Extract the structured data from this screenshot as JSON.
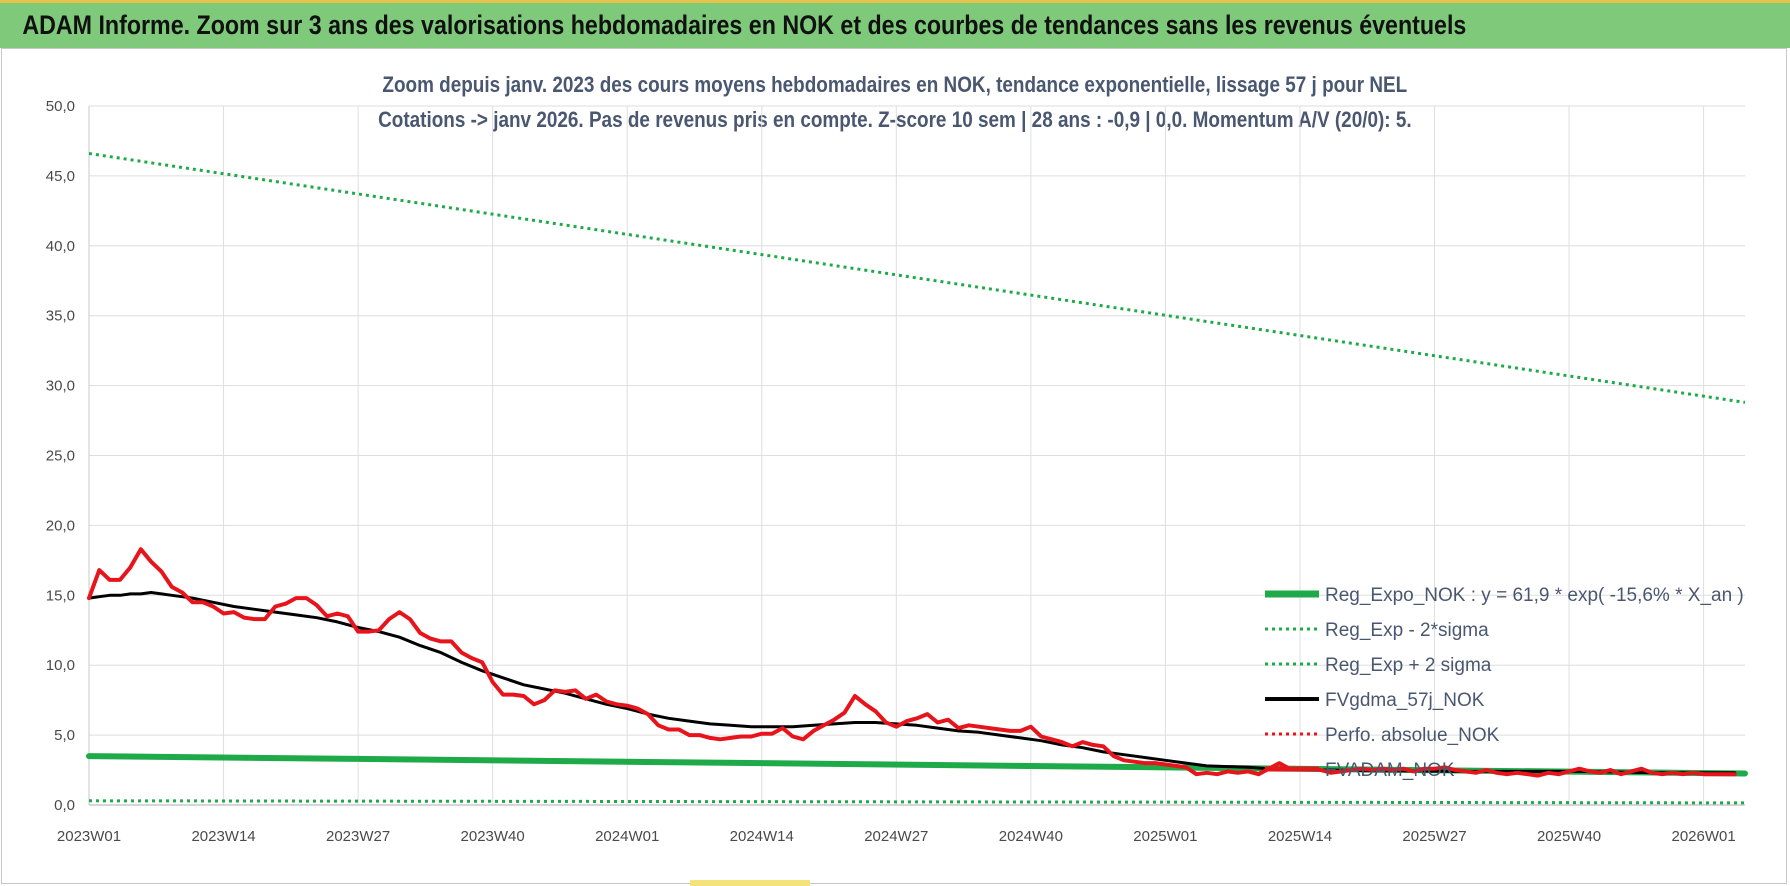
{
  "banner": {
    "title": "ADAM Informe. Zoom sur 3 ans des valorisations hebdomadaires en NOK et des courbes de tendances sans les revenus éventuels"
  },
  "chart_data": {
    "type": "line",
    "title": "Zoom depuis janv. 2023 des cours moyens hebdomadaires en NOK, tendance exponentielle, lissage 57 j pour NEL",
    "subtitle": "Cotations -> janv 2026. Pas de revenus pris en compte. Z-score 10 sem | 28 ans : -0,9 | 0,0. Momentum A/V (20/0): 5.",
    "xlabel": "",
    "ylabel": "",
    "ylim": [
      0,
      50
    ],
    "yticks": [
      "0,0",
      "5,0",
      "10,0",
      "15,0",
      "20,0",
      "25,0",
      "30,0",
      "35,0",
      "40,0",
      "45,0",
      "50,0"
    ],
    "xticks": [
      {
        "label": "2023W01",
        "week": 0
      },
      {
        "label": "2023W14",
        "week": 13
      },
      {
        "label": "2023W27",
        "week": 26
      },
      {
        "label": "2023W40",
        "week": 39
      },
      {
        "label": "2024W01",
        "week": 52
      },
      {
        "label": "2024W14",
        "week": 65
      },
      {
        "label": "2024W27",
        "week": 78
      },
      {
        "label": "2024W40",
        "week": 91
      },
      {
        "label": "2025W01",
        "week": 104
      },
      {
        "label": "2025W14",
        "week": 117
      },
      {
        "label": "2025W27",
        "week": 130
      },
      {
        "label": "2025W40",
        "week": 143
      },
      {
        "label": "2026W01",
        "week": 156
      }
    ],
    "x_range_weeks": [
      0,
      160
    ],
    "grid": true,
    "legend_position": "bottom-right",
    "series": [
      {
        "name": "Reg_Expo_NOK : y = 61,9 * exp( -15,6% *  X_an )",
        "color": "#1faa4a",
        "style": "solid",
        "width": 6,
        "points": [
          [
            0,
            3.5
          ],
          [
            160,
            2.25
          ]
        ]
      },
      {
        "name": "Reg_Exp - 2*sigma",
        "color": "#1faa4a",
        "style": "dotted",
        "width": 3,
        "points": [
          [
            0,
            0.3
          ],
          [
            160,
            0.15
          ]
        ]
      },
      {
        "name": "Reg_Exp + 2 sigma",
        "color": "#1faa4a",
        "style": "dotted",
        "width": 3,
        "points": [
          [
            0,
            46.6
          ],
          [
            160,
            28.8
          ]
        ]
      },
      {
        "name": "FVgdma_57j_NOK",
        "color": "#000000",
        "style": "solid",
        "width": 3,
        "points": [
          [
            0,
            14.8
          ],
          [
            1,
            14.9
          ],
          [
            2,
            15.0
          ],
          [
            3,
            15.0
          ],
          [
            4,
            15.1
          ],
          [
            5,
            15.1
          ],
          [
            6,
            15.2
          ],
          [
            7,
            15.1
          ],
          [
            8,
            15.0
          ],
          [
            9,
            14.9
          ],
          [
            10,
            14.8
          ],
          [
            12,
            14.5
          ],
          [
            14,
            14.2
          ],
          [
            16,
            14.0
          ],
          [
            18,
            13.8
          ],
          [
            20,
            13.6
          ],
          [
            22,
            13.4
          ],
          [
            24,
            13.1
          ],
          [
            26,
            12.7
          ],
          [
            28,
            12.4
          ],
          [
            30,
            12.0
          ],
          [
            32,
            11.4
          ],
          [
            34,
            10.9
          ],
          [
            36,
            10.2
          ],
          [
            38,
            9.6
          ],
          [
            40,
            9.1
          ],
          [
            42,
            8.6
          ],
          [
            44,
            8.3
          ],
          [
            46,
            8.0
          ],
          [
            48,
            7.6
          ],
          [
            50,
            7.2
          ],
          [
            52,
            6.9
          ],
          [
            54,
            6.5
          ],
          [
            56,
            6.2
          ],
          [
            58,
            6.0
          ],
          [
            60,
            5.8
          ],
          [
            62,
            5.7
          ],
          [
            64,
            5.6
          ],
          [
            66,
            5.6
          ],
          [
            68,
            5.6
          ],
          [
            70,
            5.7
          ],
          [
            72,
            5.8
          ],
          [
            74,
            5.9
          ],
          [
            76,
            5.9
          ],
          [
            78,
            5.8
          ],
          [
            80,
            5.7
          ],
          [
            82,
            5.5
          ],
          [
            84,
            5.3
          ],
          [
            86,
            5.2
          ],
          [
            88,
            5.0
          ],
          [
            90,
            4.8
          ],
          [
            92,
            4.6
          ],
          [
            94,
            4.3
          ],
          [
            96,
            4.1
          ],
          [
            98,
            3.8
          ],
          [
            100,
            3.6
          ],
          [
            102,
            3.4
          ],
          [
            104,
            3.2
          ],
          [
            106,
            3.0
          ],
          [
            108,
            2.8
          ],
          [
            110,
            2.75
          ],
          [
            112,
            2.7
          ],
          [
            114,
            2.6
          ],
          [
            116,
            2.55
          ],
          [
            118,
            2.5
          ],
          [
            120,
            2.5
          ],
          [
            124,
            2.45
          ],
          [
            128,
            2.45
          ],
          [
            132,
            2.4
          ],
          [
            136,
            2.4
          ],
          [
            140,
            2.4
          ],
          [
            144,
            2.4
          ],
          [
            148,
            2.35
          ],
          [
            152,
            2.3
          ],
          [
            156,
            2.3
          ],
          [
            159,
            2.3
          ]
        ]
      },
      {
        "name": "Perfo. absolue_NOK",
        "color": "#e8141c",
        "style": "dotted",
        "width": 3,
        "points": []
      },
      {
        "name": "FVADAM_NOK",
        "color": "#e8141c",
        "style": "solid",
        "width": 4,
        "points": [
          [
            0,
            14.8
          ],
          [
            1,
            16.8
          ],
          [
            2,
            16.1
          ],
          [
            3,
            16.1
          ],
          [
            4,
            17.0
          ],
          [
            5,
            18.3
          ],
          [
            6,
            17.4
          ],
          [
            7,
            16.7
          ],
          [
            8,
            15.6
          ],
          [
            9,
            15.2
          ],
          [
            10,
            14.5
          ],
          [
            11,
            14.5
          ],
          [
            12,
            14.2
          ],
          [
            13,
            13.7
          ],
          [
            14,
            13.8
          ],
          [
            15,
            13.4
          ],
          [
            16,
            13.3
          ],
          [
            17,
            13.3
          ],
          [
            18,
            14.2
          ],
          [
            19,
            14.4
          ],
          [
            20,
            14.8
          ],
          [
            21,
            14.8
          ],
          [
            22,
            14.3
          ],
          [
            23,
            13.5
          ],
          [
            24,
            13.7
          ],
          [
            25,
            13.5
          ],
          [
            26,
            12.4
          ],
          [
            27,
            12.4
          ],
          [
            28,
            12.5
          ],
          [
            29,
            13.3
          ],
          [
            30,
            13.8
          ],
          [
            31,
            13.3
          ],
          [
            32,
            12.3
          ],
          [
            33,
            11.9
          ],
          [
            34,
            11.7
          ],
          [
            35,
            11.7
          ],
          [
            36,
            10.9
          ],
          [
            37,
            10.5
          ],
          [
            38,
            10.2
          ],
          [
            39,
            8.8
          ],
          [
            40,
            7.9
          ],
          [
            41,
            7.9
          ],
          [
            42,
            7.8
          ],
          [
            43,
            7.2
          ],
          [
            44,
            7.5
          ],
          [
            45,
            8.2
          ],
          [
            46,
            8.1
          ],
          [
            47,
            8.2
          ],
          [
            48,
            7.6
          ],
          [
            49,
            7.9
          ],
          [
            50,
            7.4
          ],
          [
            51,
            7.2
          ],
          [
            52,
            7.1
          ],
          [
            53,
            6.9
          ],
          [
            54,
            6.5
          ],
          [
            55,
            5.7
          ],
          [
            56,
            5.4
          ],
          [
            57,
            5.4
          ],
          [
            58,
            5.0
          ],
          [
            59,
            5.0
          ],
          [
            60,
            4.8
          ],
          [
            61,
            4.7
          ],
          [
            62,
            4.8
          ],
          [
            63,
            4.9
          ],
          [
            64,
            4.9
          ],
          [
            65,
            5.1
          ],
          [
            66,
            5.1
          ],
          [
            67,
            5.5
          ],
          [
            68,
            4.9
          ],
          [
            69,
            4.7
          ],
          [
            70,
            5.3
          ],
          [
            71,
            5.7
          ],
          [
            72,
            6.1
          ],
          [
            73,
            6.6
          ],
          [
            74,
            7.8
          ],
          [
            75,
            7.2
          ],
          [
            76,
            6.7
          ],
          [
            77,
            5.9
          ],
          [
            78,
            5.6
          ],
          [
            79,
            6.0
          ],
          [
            80,
            6.2
          ],
          [
            81,
            6.5
          ],
          [
            82,
            5.9
          ],
          [
            83,
            6.1
          ],
          [
            84,
            5.5
          ],
          [
            85,
            5.7
          ],
          [
            86,
            5.6
          ],
          [
            87,
            5.5
          ],
          [
            88,
            5.4
          ],
          [
            89,
            5.3
          ],
          [
            90,
            5.3
          ],
          [
            91,
            5.6
          ],
          [
            92,
            4.9
          ],
          [
            93,
            4.7
          ],
          [
            94,
            4.5
          ],
          [
            95,
            4.2
          ],
          [
            96,
            4.5
          ],
          [
            97,
            4.3
          ],
          [
            98,
            4.2
          ],
          [
            99,
            3.5
          ],
          [
            100,
            3.2
          ],
          [
            101,
            3.1
          ],
          [
            102,
            3.0
          ],
          [
            103,
            3.0
          ],
          [
            104,
            2.9
          ],
          [
            105,
            2.8
          ],
          [
            106,
            2.7
          ],
          [
            107,
            2.2
          ],
          [
            108,
            2.3
          ],
          [
            109,
            2.2
          ],
          [
            110,
            2.4
          ],
          [
            111,
            2.3
          ],
          [
            112,
            2.4
          ],
          [
            113,
            2.2
          ],
          [
            114,
            2.6
          ],
          [
            115,
            3.0
          ],
          [
            116,
            2.6
          ],
          [
            117,
            2.6
          ],
          [
            118,
            2.6
          ],
          [
            119,
            2.5
          ],
          [
            120,
            2.3
          ],
          [
            121,
            2.4
          ],
          [
            122,
            2.5
          ],
          [
            123,
            2.6
          ],
          [
            124,
            2.5
          ],
          [
            125,
            2.6
          ],
          [
            126,
            2.5
          ],
          [
            127,
            2.6
          ],
          [
            128,
            2.4
          ],
          [
            129,
            2.6
          ],
          [
            130,
            2.6
          ],
          [
            131,
            2.7
          ],
          [
            132,
            2.5
          ],
          [
            133,
            2.4
          ],
          [
            134,
            2.3
          ],
          [
            135,
            2.5
          ],
          [
            136,
            2.3
          ],
          [
            137,
            2.2
          ],
          [
            138,
            2.3
          ],
          [
            139,
            2.2
          ],
          [
            140,
            2.1
          ],
          [
            141,
            2.3
          ],
          [
            142,
            2.2
          ],
          [
            143,
            2.4
          ],
          [
            144,
            2.6
          ],
          [
            145,
            2.4
          ],
          [
            146,
            2.3
          ],
          [
            147,
            2.5
          ],
          [
            148,
            2.2
          ],
          [
            149,
            2.4
          ],
          [
            150,
            2.6
          ],
          [
            151,
            2.3
          ],
          [
            152,
            2.2
          ],
          [
            153,
            2.3
          ],
          [
            154,
            2.2
          ],
          [
            155,
            2.3
          ],
          [
            156,
            2.2
          ],
          [
            157,
            2.2
          ],
          [
            158,
            2.2
          ],
          [
            159,
            2.2
          ]
        ]
      }
    ]
  }
}
